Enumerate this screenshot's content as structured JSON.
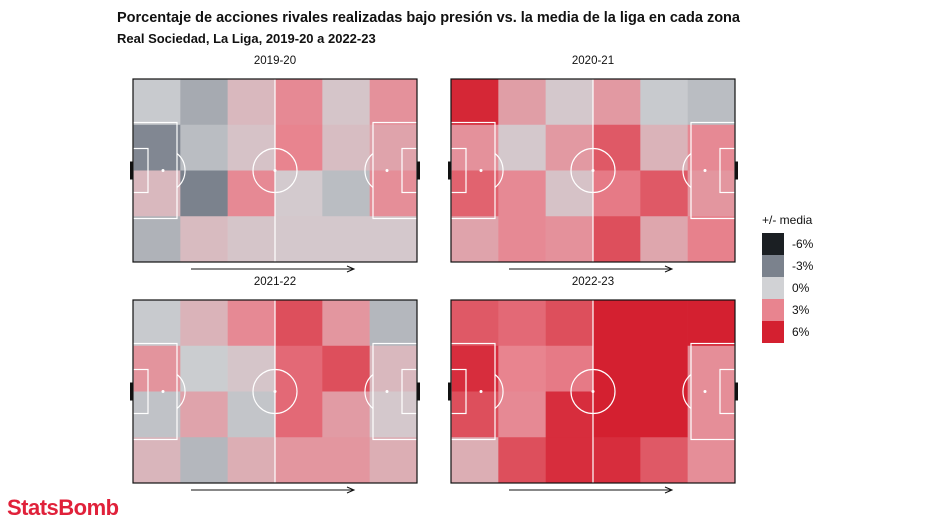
{
  "header": {
    "title": "Porcentaje de acciones rivales realizadas bajo presión vs. la media de la liga en cada zona",
    "subtitle": "Real Sociedad, La Liga, 2019-20 a 2022-23"
  },
  "legend": {
    "title": "+/- media",
    "items": [
      {
        "label": "-6%",
        "color": "#1b1f23"
      },
      {
        "label": "-3%",
        "color": "#7b828d"
      },
      {
        "label": "0%",
        "color": "#d1d2d5"
      },
      {
        "label": "3%",
        "color": "#e8848f"
      },
      {
        "label": "6%",
        "color": "#d42030"
      }
    ]
  },
  "logo": "StatsBomb",
  "chart_data": [
    {
      "type": "heatmap",
      "title": "2019-20",
      "rows": 4,
      "cols": 6,
      "color_range": [
        -6,
        6
      ],
      "cells": [
        {
          "row": 0,
          "col": 0,
          "value": -0.3
        },
        {
          "row": 0,
          "col": 1,
          "value": -1.5
        },
        {
          "row": 0,
          "col": 2,
          "value": 1.0
        },
        {
          "row": 0,
          "col": 3,
          "value": 2.8
        },
        {
          "row": 0,
          "col": 4,
          "value": 0.5
        },
        {
          "row": 0,
          "col": 5,
          "value": 2.5
        },
        {
          "row": 1,
          "col": 0,
          "value": -2.8
        },
        {
          "row": 1,
          "col": 1,
          "value": -0.8
        },
        {
          "row": 1,
          "col": 2,
          "value": 0.6
        },
        {
          "row": 1,
          "col": 3,
          "value": 3.0
        },
        {
          "row": 1,
          "col": 4,
          "value": 0.8
        },
        {
          "row": 1,
          "col": 5,
          "value": 1.8
        },
        {
          "row": 2,
          "col": 0,
          "value": 1.0
        },
        {
          "row": 2,
          "col": 1,
          "value": -3.0
        },
        {
          "row": 2,
          "col": 2,
          "value": 2.8
        },
        {
          "row": 2,
          "col": 3,
          "value": 0.3
        },
        {
          "row": 2,
          "col": 4,
          "value": -0.8
        },
        {
          "row": 2,
          "col": 5,
          "value": 2.6
        },
        {
          "row": 3,
          "col": 0,
          "value": -1.2
        },
        {
          "row": 3,
          "col": 1,
          "value": 0.9
        },
        {
          "row": 3,
          "col": 2,
          "value": 0.5
        },
        {
          "row": 3,
          "col": 3,
          "value": 0.4
        },
        {
          "row": 3,
          "col": 4,
          "value": 0.4
        },
        {
          "row": 3,
          "col": 5,
          "value": 0.4
        }
      ]
    },
    {
      "type": "heatmap",
      "title": "2020-21",
      "rows": 4,
      "cols": 6,
      "color_range": [
        -6,
        6
      ],
      "cells": [
        {
          "row": 0,
          "col": 0,
          "value": 5.8
        },
        {
          "row": 0,
          "col": 1,
          "value": 2.0
        },
        {
          "row": 0,
          "col": 2,
          "value": 0.4
        },
        {
          "row": 0,
          "col": 3,
          "value": 2.2
        },
        {
          "row": 0,
          "col": 4,
          "value": -0.3
        },
        {
          "row": 0,
          "col": 5,
          "value": -0.8
        },
        {
          "row": 1,
          "col": 0,
          "value": 2.5
        },
        {
          "row": 1,
          "col": 1,
          "value": 0.4
        },
        {
          "row": 1,
          "col": 2,
          "value": 2.2
        },
        {
          "row": 1,
          "col": 3,
          "value": 4.3
        },
        {
          "row": 1,
          "col": 4,
          "value": 1.2
        },
        {
          "row": 1,
          "col": 5,
          "value": 2.8
        },
        {
          "row": 2,
          "col": 0,
          "value": 4.0
        },
        {
          "row": 2,
          "col": 1,
          "value": 2.8
        },
        {
          "row": 2,
          "col": 2,
          "value": 0.6
        },
        {
          "row": 2,
          "col": 3,
          "value": 3.3
        },
        {
          "row": 2,
          "col": 4,
          "value": 4.3
        },
        {
          "row": 2,
          "col": 5,
          "value": 2.3
        },
        {
          "row": 3,
          "col": 0,
          "value": 1.8
        },
        {
          "row": 3,
          "col": 1,
          "value": 2.8
        },
        {
          "row": 3,
          "col": 2,
          "value": 2.5
        },
        {
          "row": 3,
          "col": 3,
          "value": 4.6
        },
        {
          "row": 3,
          "col": 4,
          "value": 1.7
        },
        {
          "row": 3,
          "col": 5,
          "value": 3.1
        }
      ]
    },
    {
      "type": "heatmap",
      "title": "2021-22",
      "rows": 4,
      "cols": 6,
      "color_range": [
        -6,
        6
      ],
      "cells": [
        {
          "row": 0,
          "col": 0,
          "value": -0.3
        },
        {
          "row": 0,
          "col": 1,
          "value": 1.2
        },
        {
          "row": 0,
          "col": 2,
          "value": 2.8
        },
        {
          "row": 0,
          "col": 3,
          "value": 4.6
        },
        {
          "row": 0,
          "col": 4,
          "value": 2.3
        },
        {
          "row": 0,
          "col": 5,
          "value": -1.0
        },
        {
          "row": 1,
          "col": 0,
          "value": 2.4
        },
        {
          "row": 1,
          "col": 1,
          "value": -0.2
        },
        {
          "row": 1,
          "col": 2,
          "value": 0.5
        },
        {
          "row": 1,
          "col": 3,
          "value": 3.8
        },
        {
          "row": 1,
          "col": 4,
          "value": 4.6
        },
        {
          "row": 1,
          "col": 5,
          "value": 1.0
        },
        {
          "row": 2,
          "col": 0,
          "value": -0.6
        },
        {
          "row": 2,
          "col": 1,
          "value": 1.8
        },
        {
          "row": 2,
          "col": 2,
          "value": -0.5
        },
        {
          "row": 2,
          "col": 3,
          "value": 3.8
        },
        {
          "row": 2,
          "col": 4,
          "value": 2.1
        },
        {
          "row": 2,
          "col": 5,
          "value": 0.4
        },
        {
          "row": 3,
          "col": 0,
          "value": 1.1
        },
        {
          "row": 3,
          "col": 1,
          "value": -1.0
        },
        {
          "row": 3,
          "col": 2,
          "value": 1.4
        },
        {
          "row": 3,
          "col": 3,
          "value": 2.3
        },
        {
          "row": 3,
          "col": 4,
          "value": 2.3
        },
        {
          "row": 3,
          "col": 5,
          "value": 1.4
        }
      ]
    },
    {
      "type": "heatmap",
      "title": "2022-23",
      "rows": 4,
      "cols": 6,
      "color_range": [
        -6,
        6
      ],
      "cells": [
        {
          "row": 0,
          "col": 0,
          "value": 4.3
        },
        {
          "row": 0,
          "col": 1,
          "value": 3.8
        },
        {
          "row": 0,
          "col": 2,
          "value": 4.6
        },
        {
          "row": 0,
          "col": 3,
          "value": 6.0
        },
        {
          "row": 0,
          "col": 4,
          "value": 6.0
        },
        {
          "row": 0,
          "col": 5,
          "value": 6.0
        },
        {
          "row": 1,
          "col": 0,
          "value": 5.6
        },
        {
          "row": 1,
          "col": 1,
          "value": 3.0
        },
        {
          "row": 1,
          "col": 2,
          "value": 3.3
        },
        {
          "row": 1,
          "col": 3,
          "value": 6.0
        },
        {
          "row": 1,
          "col": 4,
          "value": 6.0
        },
        {
          "row": 1,
          "col": 5,
          "value": 2.6
        },
        {
          "row": 2,
          "col": 0,
          "value": 4.6
        },
        {
          "row": 2,
          "col": 1,
          "value": 2.8
        },
        {
          "row": 2,
          "col": 2,
          "value": 5.6
        },
        {
          "row": 2,
          "col": 3,
          "value": 6.0
        },
        {
          "row": 2,
          "col": 4,
          "value": 6.0
        },
        {
          "row": 2,
          "col": 5,
          "value": 2.6
        },
        {
          "row": 3,
          "col": 0,
          "value": 1.4
        },
        {
          "row": 3,
          "col": 1,
          "value": 4.6
        },
        {
          "row": 3,
          "col": 2,
          "value": 5.6
        },
        {
          "row": 3,
          "col": 3,
          "value": 5.6
        },
        {
          "row": 3,
          "col": 4,
          "value": 4.3
        },
        {
          "row": 3,
          "col": 5,
          "value": 2.6
        }
      ]
    }
  ]
}
